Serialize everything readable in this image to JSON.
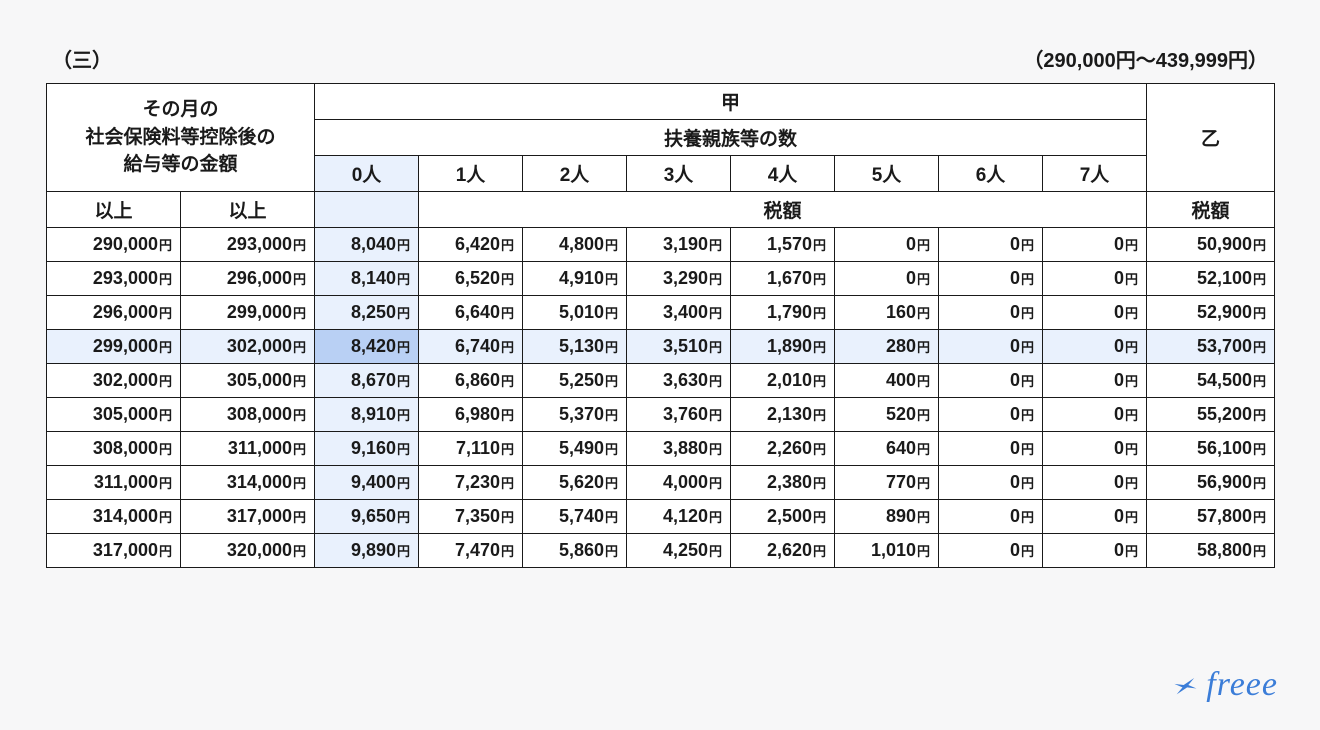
{
  "page_label": "（三）",
  "range_label": "（290,000円〜439,999円）",
  "currency_suffix": "円",
  "headers": {
    "salary": "その月の\n社会保険料等控除後の\n給与等の金額",
    "kou": "甲",
    "dependents": "扶養親族等の数",
    "otsu": "乙",
    "ijou_a": "以上",
    "ijou_b": "以上",
    "tax": "税額",
    "dep_cols": [
      "0人",
      "1人",
      "2人",
      "3人",
      "4人",
      "5人",
      "6人",
      "7人"
    ]
  },
  "highlight": {
    "col_index": 0,
    "row_index": 3
  },
  "rows": [
    {
      "from": "290,000",
      "to": "293,000",
      "vals": [
        "8,040",
        "6,420",
        "4,800",
        "3,190",
        "1,570",
        "0",
        "0",
        "0"
      ],
      "otsu": "50,900"
    },
    {
      "from": "293,000",
      "to": "296,000",
      "vals": [
        "8,140",
        "6,520",
        "4,910",
        "3,290",
        "1,670",
        "0",
        "0",
        "0"
      ],
      "otsu": "52,100"
    },
    {
      "from": "296,000",
      "to": "299,000",
      "vals": [
        "8,250",
        "6,640",
        "5,010",
        "3,400",
        "1,790",
        "160",
        "0",
        "0"
      ],
      "otsu": "52,900"
    },
    {
      "from": "299,000",
      "to": "302,000",
      "vals": [
        "8,420",
        "6,740",
        "5,130",
        "3,510",
        "1,890",
        "280",
        "0",
        "0"
      ],
      "otsu": "53,700"
    },
    {
      "from": "302,000",
      "to": "305,000",
      "vals": [
        "8,670",
        "6,860",
        "5,250",
        "3,630",
        "2,010",
        "400",
        "0",
        "0"
      ],
      "otsu": "54,500"
    },
    {
      "from": "305,000",
      "to": "308,000",
      "vals": [
        "8,910",
        "6,980",
        "5,370",
        "3,760",
        "2,130",
        "520",
        "0",
        "0"
      ],
      "otsu": "55,200"
    },
    {
      "from": "308,000",
      "to": "311,000",
      "vals": [
        "9,160",
        "7,110",
        "5,490",
        "3,880",
        "2,260",
        "640",
        "0",
        "0"
      ],
      "otsu": "56,100"
    },
    {
      "from": "311,000",
      "to": "314,000",
      "vals": [
        "9,400",
        "7,230",
        "5,620",
        "4,000",
        "2,380",
        "770",
        "0",
        "0"
      ],
      "otsu": "56,900"
    },
    {
      "from": "314,000",
      "to": "317,000",
      "vals": [
        "9,650",
        "7,350",
        "5,740",
        "4,120",
        "2,500",
        "890",
        "0",
        "0"
      ],
      "otsu": "57,800"
    },
    {
      "from": "317,000",
      "to": "320,000",
      "vals": [
        "9,890",
        "7,470",
        "5,860",
        "4,250",
        "2,620",
        "1,010",
        "0",
        "0"
      ],
      "otsu": "58,800"
    }
  ],
  "logo_text": "freee",
  "colors": {
    "page_bg": "#f7f7f8",
    "cell_bg": "#ffffff",
    "border": "#1a1a1a",
    "highlight_light": "#e9f1fd",
    "highlight_strong": "#b9d0f4",
    "brand": "#3b7dd8",
    "text": "#1a1a1a"
  }
}
